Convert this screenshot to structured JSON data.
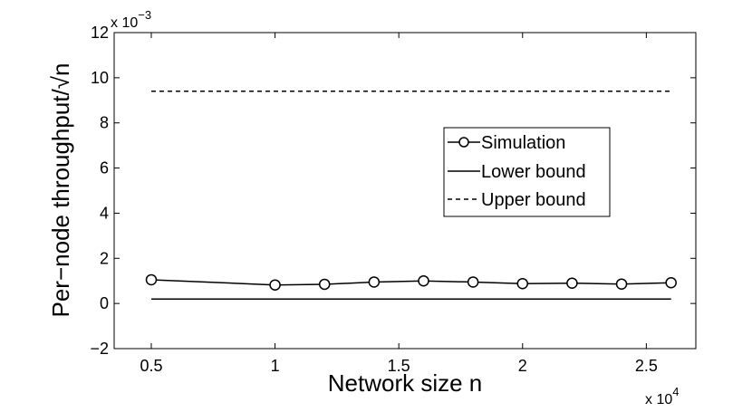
{
  "chart_data": {
    "type": "line",
    "xlabel": "Network size n",
    "ylabel": "Per−node throughput/√n",
    "x_exponent_label": "x 10",
    "x_exponent": "4",
    "y_exponent_label": "x 10",
    "y_exponent": "−3",
    "xlim": [
      0.35,
      2.7
    ],
    "ylim": [
      -2,
      12
    ],
    "xticks": [
      0.5,
      1,
      1.5,
      2,
      2.5
    ],
    "xtick_labels": [
      "0.5",
      "1",
      "1.5",
      "2",
      "2.5"
    ],
    "yticks": [
      -2,
      0,
      2,
      4,
      6,
      8,
      10,
      12
    ],
    "ytick_labels": [
      "−2",
      "0",
      "2",
      "4",
      "6",
      "8",
      "10",
      "12"
    ],
    "grid": false,
    "legend_position": "right",
    "series": [
      {
        "name": "Simulation",
        "style": "solid-circle",
        "color": "#000000",
        "x": [
          0.5,
          1.0,
          1.2,
          1.4,
          1.6,
          1.8,
          2.0,
          2.2,
          2.4,
          2.6
        ],
        "y": [
          1.05,
          0.82,
          0.85,
          0.95,
          1.0,
          0.95,
          0.88,
          0.9,
          0.86,
          0.92
        ]
      },
      {
        "name": "Lower bound",
        "style": "solid",
        "color": "#000000",
        "x": [
          0.5,
          2.6
        ],
        "y": [
          0.2,
          0.2
        ]
      },
      {
        "name": "Upper bound",
        "style": "dashed",
        "color": "#000000",
        "x": [
          0.5,
          2.6
        ],
        "y": [
          9.4,
          9.4
        ]
      }
    ]
  }
}
